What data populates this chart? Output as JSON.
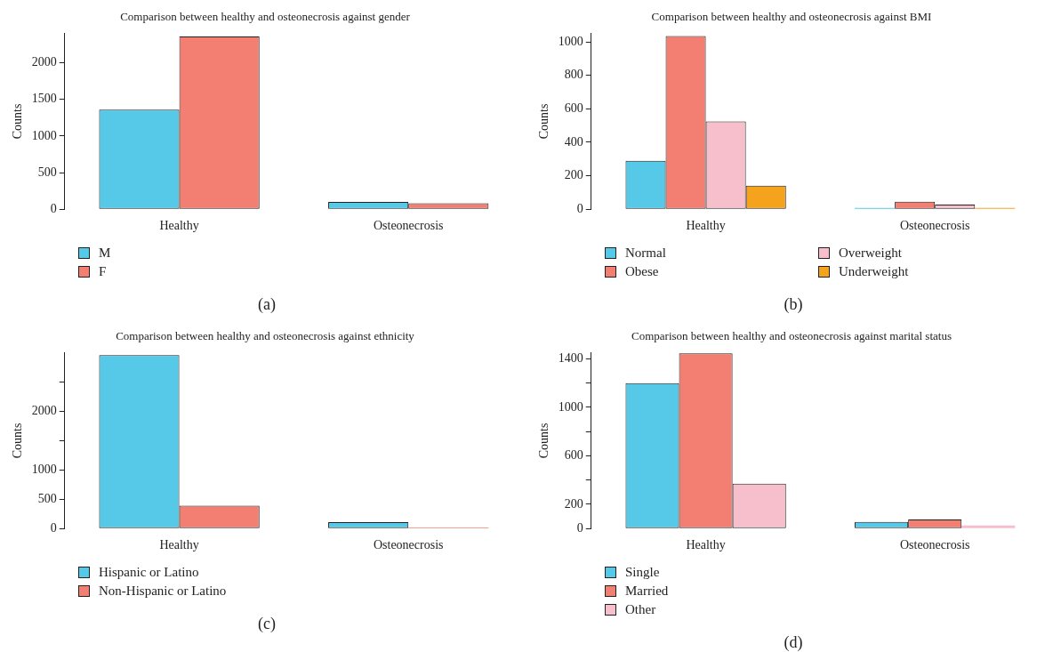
{
  "chart_data": [
    {
      "type": "bar",
      "title": "Comparison between healthy and osteonecrosis against gender",
      "ylabel": "Counts",
      "categories": [
        "Healthy",
        "Osteonecrosis"
      ],
      "series": [
        {
          "name": "M",
          "color": "#56c9e8",
          "values": [
            1360,
            100
          ]
        },
        {
          "name": "F",
          "color": "#f37f73",
          "values": [
            2360,
            80
          ]
        }
      ],
      "ylim": [
        0,
        2400
      ],
      "yticks": [
        0,
        500,
        1000,
        1500,
        2000
      ],
      "legend": "bottom left",
      "annotations": [
        "(a)"
      ]
    },
    {
      "type": "bar",
      "title": "Comparison between healthy and osteonecrosis against BMI",
      "ylabel": "Counts",
      "categories": [
        "Healthy",
        "Osteonecrosis"
      ],
      "series": [
        {
          "name": "Normal",
          "color": "#56c9e8",
          "values": [
            290,
            8
          ]
        },
        {
          "name": "Obese",
          "color": "#f37f73",
          "values": [
            1035,
            45
          ]
        },
        {
          "name": "Overweight",
          "color": "#f7bfcc",
          "values": [
            525,
            28
          ]
        },
        {
          "name": "Underweight",
          "color": "#f5a31d",
          "values": [
            140,
            8
          ]
        }
      ],
      "ylim": [
        0,
        1050
      ],
      "yticks": [
        0,
        200,
        400,
        600,
        800,
        1000
      ],
      "legend": "bottom left",
      "annotations": [
        "(b)"
      ]
    },
    {
      "type": "bar",
      "title": "Comparison between healthy and osteonecrosis against ethnicity",
      "ylabel": "Counts",
      "categories": [
        "Healthy",
        "Osteonecrosis"
      ],
      "series": [
        {
          "name": "Hispanic or Latino",
          "color": "#56c9e8",
          "values": [
            2960,
            110
          ]
        },
        {
          "name": "Non-Hispanic or Latino",
          "color": "#f37f73",
          "values": [
            390,
            20
          ]
        }
      ],
      "ylim": [
        0,
        3000
      ],
      "yticks": [
        0,
        500,
        1000,
        {
          "value": 1500,
          "label": null
        },
        2000,
        {
          "value": 2500,
          "label": null
        }
      ],
      "legend": "bottom left",
      "annotations": [
        "(c)"
      ]
    },
    {
      "type": "bar",
      "title": "Comparison between healthy and osteonecrosis against marital status",
      "ylabel": "Counts",
      "categories": [
        "Healthy",
        "Osteonecrosis"
      ],
      "series": [
        {
          "name": "Single",
          "color": "#56c9e8",
          "values": [
            1200,
            55
          ]
        },
        {
          "name": "Married",
          "color": "#f37f73",
          "values": [
            1445,
            75
          ]
        },
        {
          "name": "Other",
          "color": "#f7bfcc",
          "values": [
            370,
            25
          ]
        }
      ],
      "ylim": [
        0,
        1450
      ],
      "yticks": [
        0,
        200,
        {
          "value": 400,
          "label": null
        },
        600,
        {
          "value": 800,
          "label": null
        },
        1000,
        {
          "value": 1200,
          "label": null
        },
        1400
      ],
      "legend": "bottom left",
      "annotations": [
        "(d)"
      ]
    }
  ]
}
